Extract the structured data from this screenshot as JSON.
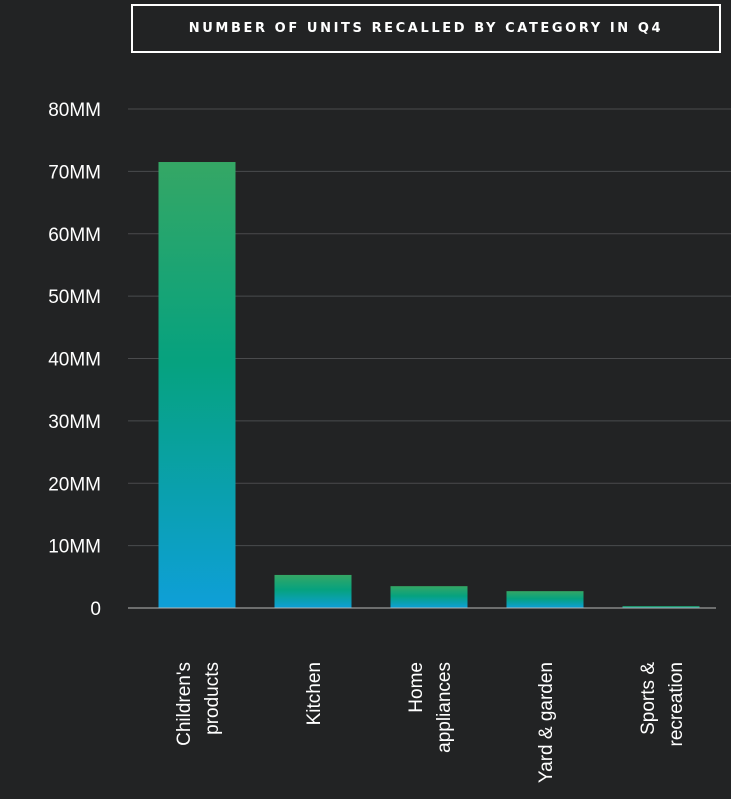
{
  "chart_data": {
    "type": "bar",
    "title": "NUMBER OF UNITS RECALLED BY CATEGORY IN Q4",
    "categories": [
      [
        "Children's",
        "products"
      ],
      [
        "Kitchen"
      ],
      [
        "Home",
        "appliances"
      ],
      [
        "Yard & garden"
      ],
      [
        "Sports &",
        "recreation"
      ]
    ],
    "values": [
      71.5,
      5.3,
      3.5,
      2.7,
      0.3
    ],
    "unit": "MM",
    "ylim": [
      0,
      80
    ],
    "yticks": [
      "0",
      "10MM",
      "20MM",
      "30MM",
      "40MM",
      "50MM",
      "60MM",
      "70MM",
      "80MM"
    ],
    "grid": true,
    "colors": {
      "background": "#222324",
      "bar_top": "#35a765",
      "bar_mid": "#06a27f",
      "bar_bottom": "#0e9fd8",
      "grid": "#4a4b4d",
      "axis": "#b8b8b8",
      "text": "#ffffff"
    }
  }
}
